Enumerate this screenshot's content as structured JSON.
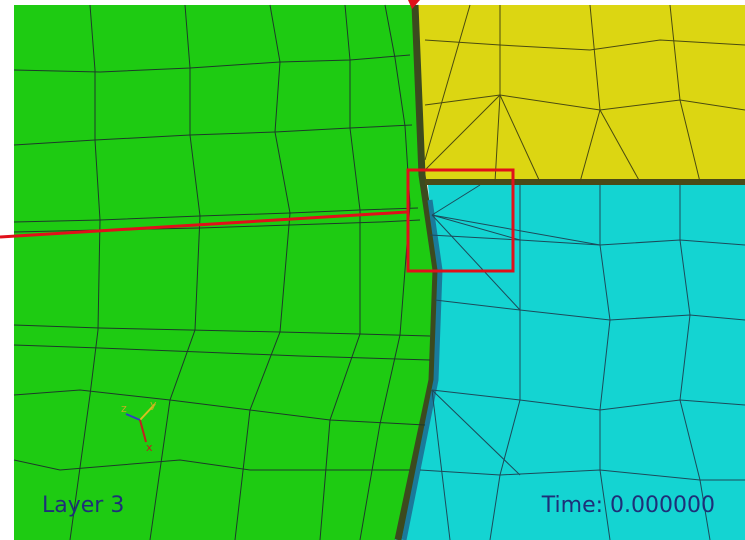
{
  "overlay": {
    "layer_label": "Layer 3",
    "time_label": "Time: 0.000000"
  },
  "axes_triad": {
    "z": "z",
    "y": "y",
    "x": "x"
  }
}
